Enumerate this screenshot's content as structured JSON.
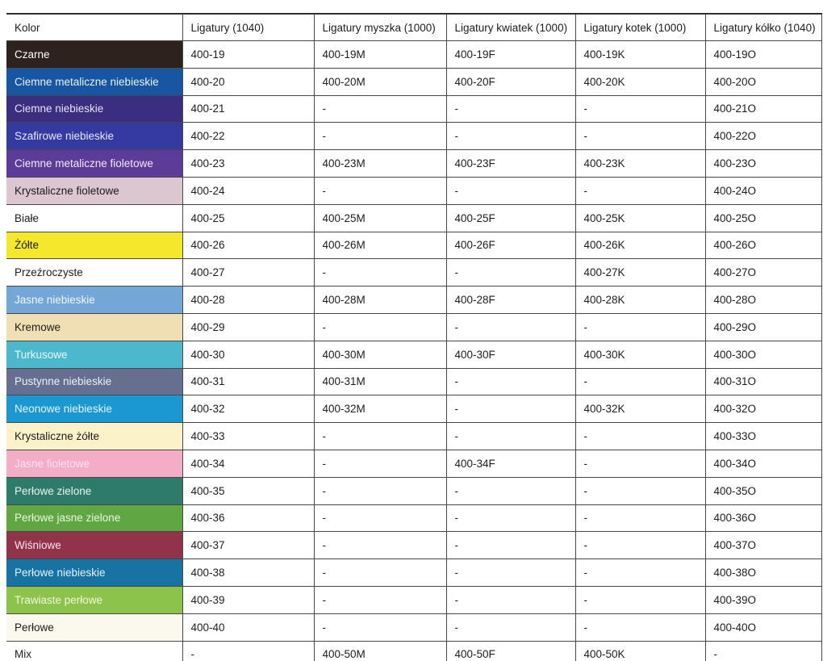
{
  "table": {
    "columns": [
      "Kolor",
      "Ligatury (1040)",
      "Ligatury myszka (1000)",
      "Ligatury kwiatek (1000)",
      "Ligatury kotek (1000)",
      "Ligatury kółko (1040)"
    ],
    "rows": [
      {
        "name": "Czarne",
        "bg": "#2d221d",
        "fg": "#ffffff",
        "values": [
          "400-19",
          "400-19M",
          "400-19F",
          "400-19K",
          "400-19O"
        ]
      },
      {
        "name": "Ciemne metaliczne niebieskie",
        "bg": "#1656a2",
        "fg": "#e9f2fb",
        "values": [
          "400-20",
          "400-20M",
          "400-20F",
          "400-20K",
          "400-20O"
        ]
      },
      {
        "name": "Ciemne niebieskie",
        "bg": "#3b2d80",
        "fg": "#e7e4f3",
        "values": [
          "400-21",
          "-",
          "-",
          "-",
          "400-21O"
        ]
      },
      {
        "name": "Szafirowe niebieskie",
        "bg": "#3539a2",
        "fg": "#e9eaf7",
        "values": [
          "400-22",
          "-",
          "-",
          "-",
          "400-22O"
        ]
      },
      {
        "name": "Ciemne metaliczne fioletowe",
        "bg": "#5d3b98",
        "fg": "#f0ebf7",
        "values": [
          "400-23",
          "400-23M",
          "400-23F",
          "400-23K",
          "400-23O"
        ]
      },
      {
        "name": "Krystaliczne fioletowe",
        "bg": "#dcc6d0",
        "fg": "#1c1c1c",
        "values": [
          "400-24",
          "-",
          "-",
          "-",
          "400-24O"
        ]
      },
      {
        "name": "Białe",
        "bg": "#ffffff",
        "fg": "#1c1c1c",
        "values": [
          "400-25",
          "400-25M",
          "400-25F",
          "400-25K",
          "400-25O"
        ]
      },
      {
        "name": "Żółte",
        "bg": "#f4e72c",
        "fg": "#1c1c1c",
        "values": [
          "400-26",
          "400-26M",
          "400-26F",
          "400-26K",
          "400-26O"
        ]
      },
      {
        "name": "Przeźroczyste",
        "bg": "#ffffff",
        "fg": "#1c1c1c",
        "values": [
          "400-27",
          "-",
          "-",
          "400-27K",
          "400-27O"
        ]
      },
      {
        "name": "Jasne niebieskie",
        "bg": "#74a7d8",
        "fg": "#f2f7fc",
        "values": [
          "400-28",
          "400-28M",
          "400-28F",
          "400-28K",
          "400-28O"
        ]
      },
      {
        "name": "Kremowe",
        "bg": "#f0dfb2",
        "fg": "#1c1c1c",
        "values": [
          "400-29",
          "-",
          "-",
          "-",
          "400-29O"
        ]
      },
      {
        "name": "Turkusowe",
        "bg": "#4bb8ce",
        "fg": "#ecf9fc",
        "values": [
          "400-30",
          "400-30M",
          "400-30F",
          "400-30K",
          "400-30O"
        ]
      },
      {
        "name": "Pustynne niebieskie",
        "bg": "#666f90",
        "fg": "#eef0f5",
        "values": [
          "400-31",
          "400-31M",
          "-",
          "-",
          "400-31O"
        ]
      },
      {
        "name": "Neonowe niebieskie",
        "bg": "#1b97d1",
        "fg": "#e9f5fc",
        "values": [
          "400-32",
          "400-32M",
          "-",
          "400-32K",
          "400-32O"
        ]
      },
      {
        "name": "Krystaliczne żółte",
        "bg": "#fbf2ca",
        "fg": "#1c1c1c",
        "values": [
          "400-33",
          "-",
          "-",
          "-",
          "400-33O"
        ]
      },
      {
        "name": "Jasne fioletowe",
        "bg": "#f3adc7",
        "fg": "#fce3ec",
        "values": [
          "400-34",
          "-",
          "400-34F",
          "-",
          "400-34O"
        ]
      },
      {
        "name": "Perłowe zielone",
        "bg": "#2e7a6b",
        "fg": "#e9f4f0",
        "values": [
          "400-35",
          "-",
          "-",
          "-",
          "400-35O"
        ]
      },
      {
        "name": "Perłowe jasne zielone",
        "bg": "#60a744",
        "fg": "#ecf6e2",
        "values": [
          "400-36",
          "-",
          "-",
          "-",
          "400-36O"
        ]
      },
      {
        "name": "Wiśniowe",
        "bg": "#913349",
        "fg": "#fae8ed",
        "values": [
          "400-37",
          "-",
          "-",
          "-",
          "400-37O"
        ]
      },
      {
        "name": "Perłowe niebieskie",
        "bg": "#1873a5",
        "fg": "#e9f3fa",
        "values": [
          "400-38",
          "-",
          "-",
          "-",
          "400-38O"
        ]
      },
      {
        "name": "Trawiaste perłowe",
        "bg": "#8cc34b",
        "fg": "#eff8da",
        "values": [
          "400-39",
          "-",
          "-",
          "-",
          "400-39O"
        ]
      },
      {
        "name": "Perłowe",
        "bg": "#fbf9ee",
        "fg": "#1c1c1c",
        "values": [
          "400-40",
          "-",
          "-",
          "-",
          "400-40O"
        ]
      },
      {
        "name": "Mix",
        "bg": "#ffffff",
        "fg": "#1c1c1c",
        "values": [
          "-",
          "400-50M",
          "400-50F",
          "400-50K",
          "-"
        ]
      }
    ]
  }
}
